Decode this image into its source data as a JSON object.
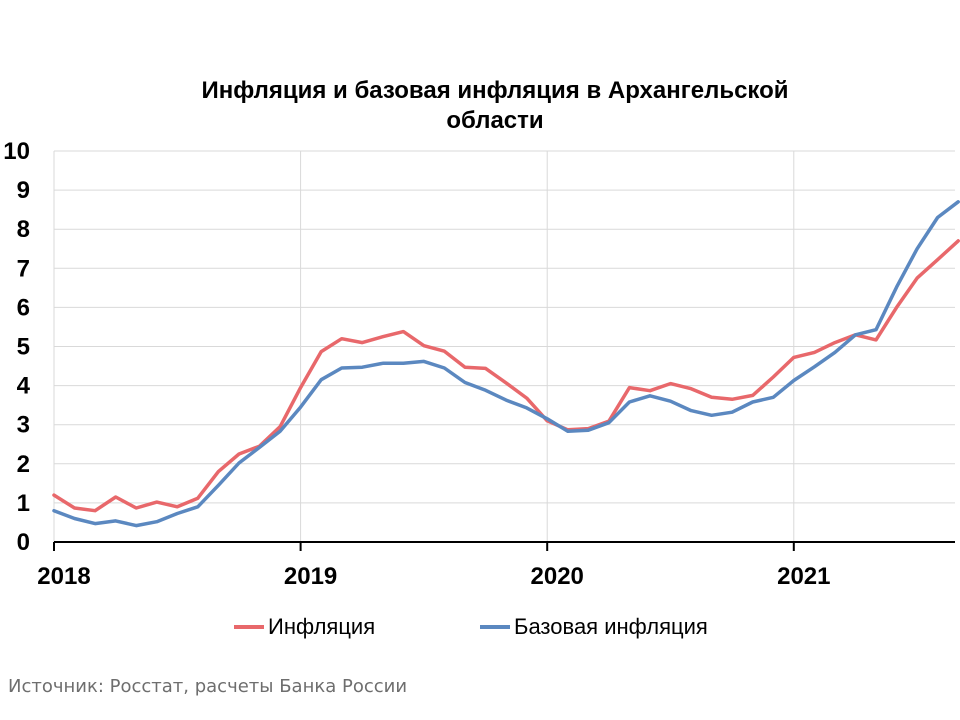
{
  "chart_data": {
    "type": "line",
    "title_lines": [
      "Инфляция и базовая инфляция в Архангельской",
      "области"
    ],
    "ylim": [
      0,
      10
    ],
    "yticks": [
      "0",
      "1",
      "2",
      "3",
      "4",
      "5",
      "6",
      "7",
      "8",
      "9",
      "10"
    ],
    "x_labels": [
      "2018",
      "2019",
      "2020",
      "2021"
    ],
    "x_start": "2018-01",
    "x_end": "2021-08",
    "grid": true,
    "legend_position": "bottom",
    "series": [
      {
        "name": "Инфляция",
        "color": "#e8686b",
        "values": [
          1.2,
          0.87,
          0.8,
          1.15,
          0.87,
          1.02,
          0.9,
          1.12,
          1.8,
          2.25,
          2.45,
          2.95,
          3.95,
          4.87,
          5.2,
          5.1,
          5.25,
          5.38,
          5.02,
          4.88,
          4.47,
          4.44,
          4.07,
          3.68,
          3.1,
          2.87,
          2.9,
          3.09,
          3.95,
          3.87,
          4.05,
          3.92,
          3.7,
          3.65,
          3.75,
          4.22,
          4.72,
          4.85,
          5.1,
          5.3,
          5.17,
          6.0,
          6.75,
          7.22,
          7.7
        ]
      },
      {
        "name": "Базовая инфляция",
        "color": "#5b88c0",
        "values": [
          0.8,
          0.6,
          0.47,
          0.54,
          0.42,
          0.52,
          0.73,
          0.9,
          1.45,
          2.02,
          2.42,
          2.83,
          3.45,
          4.15,
          4.45,
          4.47,
          4.57,
          4.57,
          4.62,
          4.45,
          4.08,
          3.88,
          3.63,
          3.43,
          3.15,
          2.83,
          2.86,
          3.05,
          3.58,
          3.74,
          3.6,
          3.36,
          3.24,
          3.32,
          3.58,
          3.7,
          4.13,
          4.48,
          4.85,
          5.3,
          5.43,
          6.52,
          7.5,
          8.3,
          8.7
        ]
      }
    ]
  },
  "source_note": "Источник: Росстат, расчеты Банка России"
}
